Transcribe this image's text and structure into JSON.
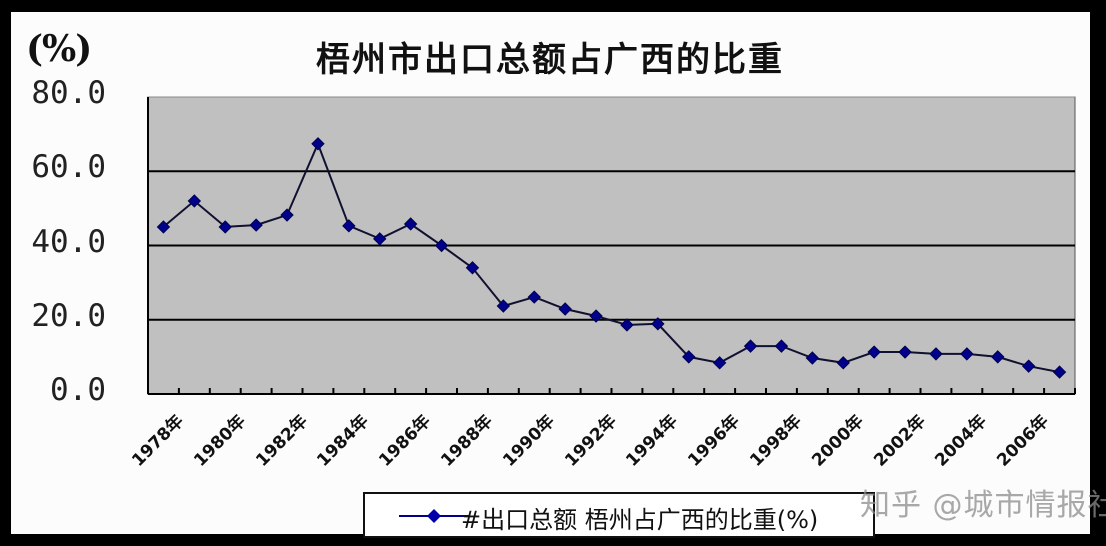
{
  "title": "梧州市出口总额占广西的比重",
  "unit_label": "(%)",
  "yaxis": {
    "ticks": [
      "80.0",
      "60.0",
      "40.0",
      "20.0",
      "0.0"
    ]
  },
  "xaxis": {
    "tick_labels": [
      "1978年",
      "1980年",
      "1982年",
      "1984年",
      "1986年",
      "1988年",
      "1990年",
      "1992年",
      "1994年",
      "1996年",
      "1998年",
      "2000年",
      "2002年",
      "2004年",
      "2006年"
    ]
  },
  "legend": {
    "label": "#出口总额  梧州占广西的比重(%)"
  },
  "watermark": "知乎 @城市情报社",
  "colors": {
    "plot_bg": "#c0c0c0",
    "marker": "#00008b",
    "line": "#101030",
    "grid": "#000000"
  },
  "chart_data": {
    "type": "line",
    "title": "梧州市出口总额占广西的比重",
    "xlabel": "",
    "ylabel": "(%)",
    "ylim": [
      0,
      80
    ],
    "yticks": [
      0,
      20,
      40,
      60,
      80
    ],
    "grid": true,
    "legend_position": "bottom",
    "categories": [
      "1978",
      "1979",
      "1980",
      "1981",
      "1982",
      "1983",
      "1984",
      "1985",
      "1986",
      "1987",
      "1988",
      "1989",
      "1990",
      "1991",
      "1992",
      "1993",
      "1994",
      "1995",
      "1996",
      "1997",
      "1998",
      "1999",
      "2000",
      "2001",
      "2002",
      "2003",
      "2004",
      "2005",
      "2006",
      "2007"
    ],
    "series": [
      {
        "name": "#出口总额  梧州占广西的比重(%)",
        "values": [
          45.0,
          52.0,
          45.0,
          45.5,
          48.2,
          67.4,
          45.3,
          41.8,
          45.8,
          40.0,
          34.0,
          23.7,
          26.1,
          22.9,
          21.0,
          18.6,
          18.9,
          10.0,
          8.4,
          12.9,
          12.9,
          9.7,
          8.4,
          11.3,
          11.3,
          10.8,
          10.8,
          10.0,
          7.5,
          5.9
        ]
      }
    ]
  }
}
